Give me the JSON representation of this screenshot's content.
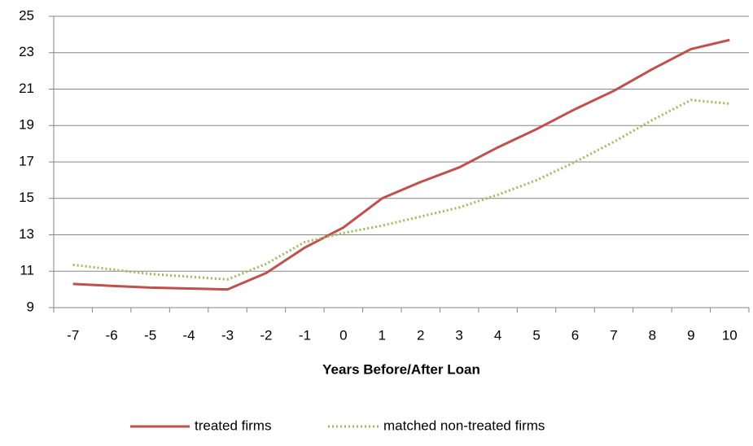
{
  "chart_data": {
    "type": "line",
    "x_label": "Years Before/After Loan",
    "categories": [
      "-7",
      "-6",
      "-5",
      "-4",
      "-3",
      "-2",
      "-1",
      "0",
      "1",
      "2",
      "3",
      "4",
      "5",
      "6",
      "7",
      "8",
      "9",
      "10"
    ],
    "series": [
      {
        "name": "treated firms",
        "color": "#c0504d",
        "dash": "solid",
        "values": [
          10.3,
          10.2,
          10.1,
          10.05,
          10.0,
          10.9,
          12.3,
          13.4,
          15.0,
          15.9,
          16.7,
          17.8,
          18.8,
          19.9,
          20.9,
          22.1,
          23.2,
          23.7
        ]
      },
      {
        "name": "matched non-treated firms",
        "color": "#9bbb59",
        "dash": "dotted",
        "values": [
          11.35,
          11.1,
          10.85,
          10.7,
          10.55,
          11.4,
          12.6,
          13.1,
          13.5,
          14.0,
          14.5,
          15.2,
          16.0,
          17.0,
          18.1,
          19.3,
          20.4,
          20.2
        ]
      }
    ],
    "ylim": [
      9,
      25
    ],
    "yticks": [
      9,
      11,
      13,
      15,
      17,
      19,
      21,
      23,
      25
    ],
    "grid": true,
    "legend": "bottom"
  }
}
